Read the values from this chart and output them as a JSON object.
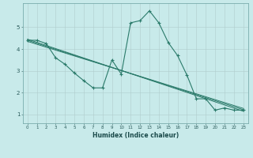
{
  "xlabel": "Humidex (Indice chaleur)",
  "background_color": "#c8eaea",
  "grid_color": "#b0cccc",
  "line_color": "#2a7a6a",
  "xlim": [
    -0.5,
    23.5
  ],
  "ylim": [
    0.6,
    6.1
  ],
  "xticks": [
    0,
    1,
    2,
    3,
    4,
    5,
    6,
    7,
    8,
    9,
    10,
    11,
    12,
    13,
    14,
    15,
    16,
    17,
    18,
    19,
    20,
    21,
    22,
    23
  ],
  "yticks": [
    1,
    2,
    3,
    4,
    5
  ],
  "main_series": {
    "x": [
      0,
      1,
      2,
      3,
      4,
      5,
      6,
      7,
      8,
      9,
      10,
      11,
      12,
      13,
      14,
      15,
      16,
      17,
      18,
      19,
      20,
      21,
      22,
      23
    ],
    "y": [
      4.4,
      4.4,
      4.25,
      3.6,
      3.3,
      2.9,
      2.55,
      2.22,
      2.22,
      3.5,
      2.85,
      5.2,
      5.3,
      5.75,
      5.2,
      4.3,
      3.7,
      2.8,
      1.72,
      1.72,
      1.2,
      1.3,
      1.2,
      1.2
    ]
  },
  "trend_lines": [
    {
      "x": [
        0,
        23
      ],
      "y": [
        4.45,
        1.15
      ]
    },
    {
      "x": [
        0,
        23
      ],
      "y": [
        4.4,
        1.22
      ]
    },
    {
      "x": [
        0,
        23
      ],
      "y": [
        4.35,
        1.28
      ]
    }
  ]
}
